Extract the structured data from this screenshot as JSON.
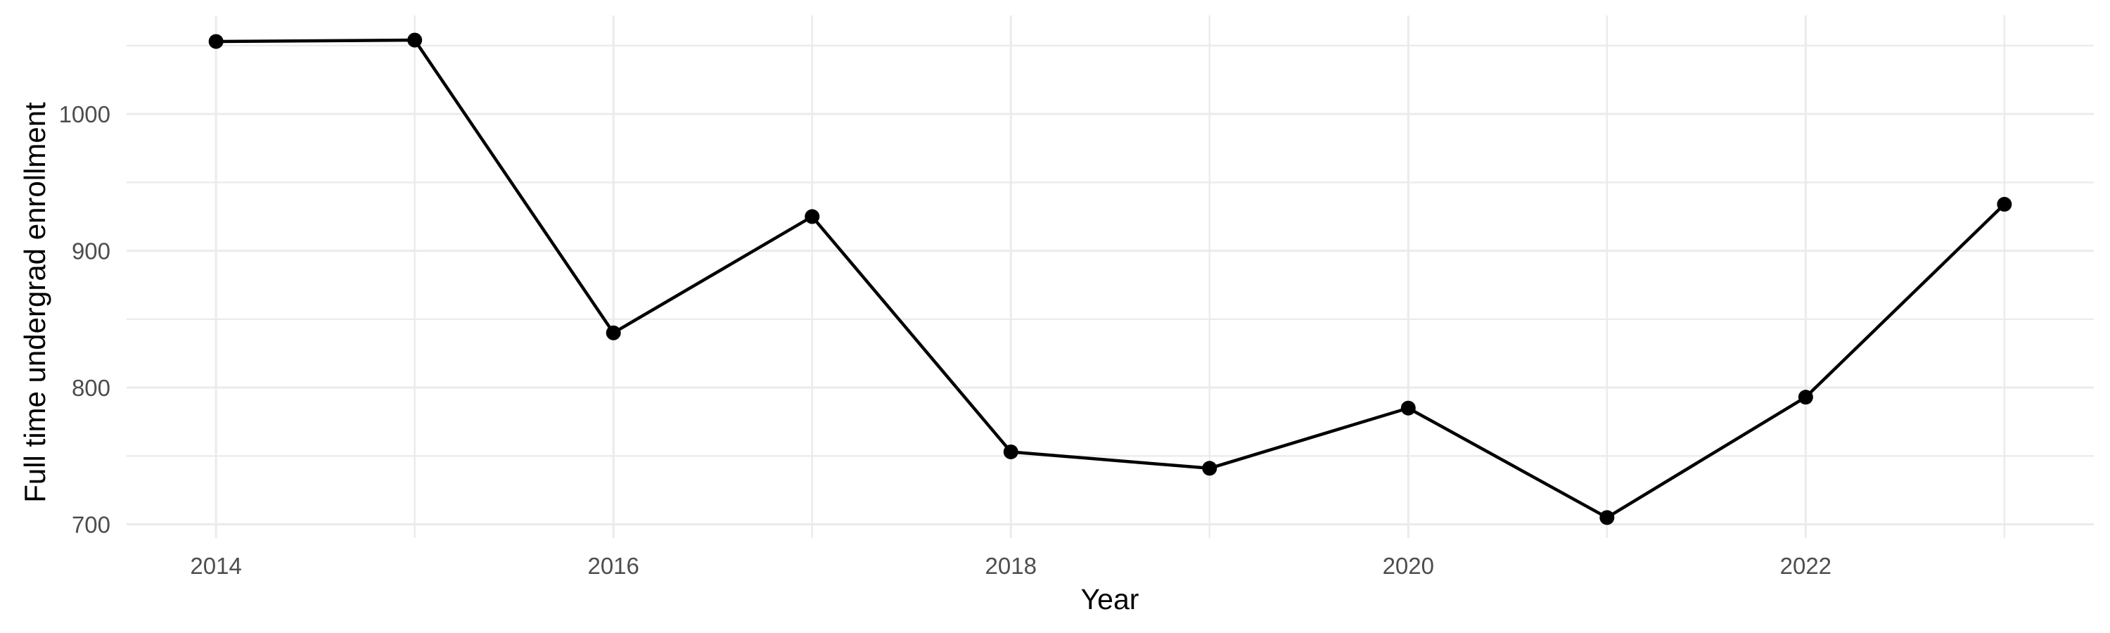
{
  "figure": {
    "background": "#ffffff"
  },
  "chart_data": {
    "type": "line",
    "title": "",
    "xlabel": "Year",
    "ylabel": "Full time undergrad enrollment",
    "x": [
      2014,
      2015,
      2016,
      2017,
      2018,
      2019,
      2020,
      2021,
      2022,
      2023
    ],
    "series": [
      {
        "name": "Full time undergrad enrollment",
        "values": [
          1053,
          1054,
          840,
          925,
          753,
          741,
          785,
          705,
          793,
          934
        ]
      }
    ],
    "x_ticks_major": [
      2014,
      2016,
      2018,
      2020,
      2022
    ],
    "x_ticks_minor": [
      2015,
      2017,
      2019,
      2021,
      2023
    ],
    "y_ticks_major": [
      700,
      800,
      900,
      1000
    ],
    "y_ticks_minor": [
      750,
      850,
      950,
      1050
    ],
    "xlim": [
      2013.55,
      2023.45
    ],
    "ylim": [
      690,
      1072
    ],
    "grid": true,
    "legend_position": "none",
    "marker": "point",
    "style": {
      "line_color": "#000000",
      "point_color": "#000000",
      "grid_color": "#ebebeb",
      "tick_label_color": "#4d4d4d",
      "axis_title_color": "#000000",
      "background": "#ffffff"
    }
  }
}
